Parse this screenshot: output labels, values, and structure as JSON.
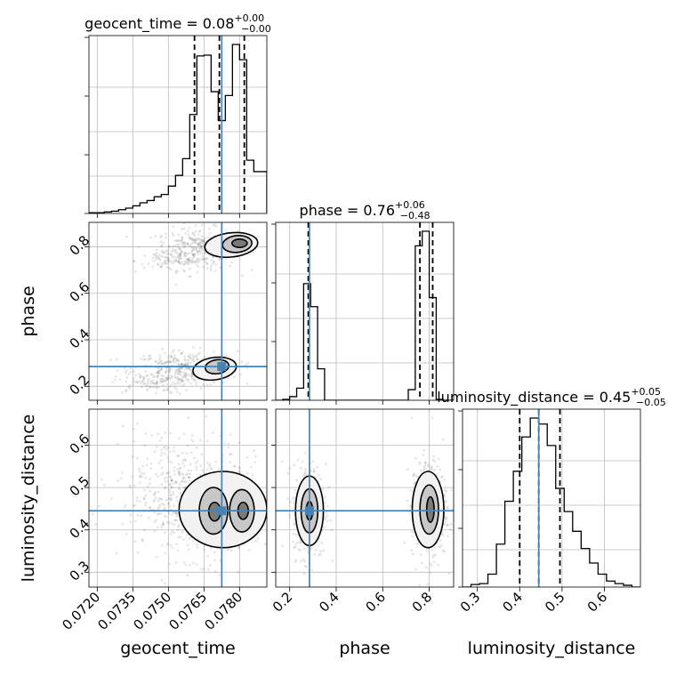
{
  "chart_data": {
    "type": "corner",
    "parameters": [
      "geocent_time",
      "phase",
      "luminosity_distance"
    ],
    "axis_labels": {
      "geocent_time": "geocent_time",
      "phase": "phase",
      "luminosity_distance": "luminosity_distance"
    },
    "ranges": {
      "geocent_time": [
        0.07165,
        0.07915
      ],
      "phase": [
        0.14,
        0.905
      ],
      "luminosity_distance": [
        0.265,
        0.685
      ]
    },
    "ticks": {
      "geocent_time": [
        "0.0720",
        "0.0735",
        "0.0750",
        "0.0765",
        "0.0780"
      ],
      "phase": [
        "0.2",
        "0.4",
        "0.6",
        "0.8"
      ],
      "luminosity_distance": [
        "0.3",
        "0.4",
        "0.5",
        "0.6"
      ]
    },
    "titles": {
      "geocent_time": {
        "name": "geocent_time",
        "median": "0.08",
        "plus": "+0.00",
        "minus": "−0.00"
      },
      "phase": {
        "name": "phase",
        "median": "0.76",
        "plus": "+0.06",
        "minus": "−0.48"
      },
      "luminosity_distance": {
        "name": "luminosity_distance",
        "median": "0.45",
        "plus": "+0.05",
        "minus": "−0.05"
      }
    },
    "truths": {
      "geocent_time": 0.07725,
      "phase": 0.285,
      "luminosity_distance": 0.445
    },
    "quantiles": {
      "geocent_time": [
        0.0761,
        0.07715,
        0.0782
      ],
      "phase": [
        0.28,
        0.76,
        0.815
      ],
      "luminosity_distance": [
        0.4,
        0.445,
        0.495
      ]
    },
    "histograms": {
      "geocent_time": {
        "edges": [
          0.07165,
          0.072,
          0.0723,
          0.0726,
          0.0729,
          0.0732,
          0.0735,
          0.0738,
          0.0741,
          0.0744,
          0.0747,
          0.075,
          0.0753,
          0.0756,
          0.0759,
          0.0762,
          0.0765,
          0.0768,
          0.0771,
          0.0774,
          0.0777,
          0.078,
          0.0783,
          0.0786,
          0.07915
        ],
        "counts": [
          1,
          1,
          2,
          3,
          5,
          7,
          10,
          14,
          17,
          22,
          25,
          36,
          50,
          72,
          130,
          207,
          208,
          160,
          122,
          155,
          222,
          202,
          70,
          55
        ]
      },
      "phase": {
        "edges": [
          0.14,
          0.17,
          0.2,
          0.23,
          0.26,
          0.29,
          0.32,
          0.35,
          0.38,
          0.41,
          0.44,
          0.47,
          0.5,
          0.53,
          0.56,
          0.59,
          0.62,
          0.65,
          0.68,
          0.71,
          0.74,
          0.77,
          0.8,
          0.83,
          0.86,
          0.905
        ],
        "counts": [
          0,
          3,
          12,
          40,
          385,
          309,
          104,
          0,
          0,
          0,
          0,
          0,
          0,
          0,
          0,
          0,
          0,
          0,
          0,
          35,
          510,
          558,
          339,
          3,
          0
        ]
      },
      "luminosity_distance": {
        "edges": [
          0.265,
          0.285,
          0.305,
          0.325,
          0.345,
          0.365,
          0.385,
          0.405,
          0.425,
          0.445,
          0.465,
          0.485,
          0.505,
          0.525,
          0.545,
          0.565,
          0.585,
          0.605,
          0.625,
          0.645,
          0.665,
          0.685
        ],
        "counts": [
          0,
          3,
          4,
          15,
          50,
          100,
          135,
          175,
          197,
          190,
          165,
          115,
          88,
          65,
          45,
          28,
          15,
          7,
          4,
          2,
          0
        ]
      }
    },
    "contours_2d": {
      "phase_vs_geocent_time": {
        "levels": [
          {
            "shade": "#f2f2f2",
            "regions": [
              {
                "cx": 0.07765,
                "cy": 0.808,
                "rx": 0.00112,
                "ry": 0.052,
                "rot": -6
              },
              {
                "cx": 0.07695,
                "cy": 0.276,
                "rx": 0.00092,
                "ry": 0.048,
                "rot": -8
              }
            ]
          },
          {
            "shade": "#c8c8c8",
            "regions": [
              {
                "cx": 0.0779,
                "cy": 0.812,
                "rx": 0.00062,
                "ry": 0.036,
                "rot": -6
              },
              {
                "cx": 0.07705,
                "cy": 0.284,
                "rx": 0.0005,
                "ry": 0.03,
                "rot": -8
              }
            ]
          },
          {
            "shade": "#7a7a7a",
            "regions": [
              {
                "cx": 0.078,
                "cy": 0.815,
                "rx": 0.00032,
                "ry": 0.018,
                "rot": 0
              }
            ]
          }
        ],
        "scatter_clusters": [
          {
            "cx": 0.0762,
            "cy": 0.79,
            "sx": 0.00085,
            "sy": 0.045,
            "n": 320
          },
          {
            "cx": 0.075,
            "cy": 0.74,
            "sx": 0.0007,
            "sy": 0.025,
            "n": 60
          },
          {
            "cx": 0.0757,
            "cy": 0.275,
            "sx": 0.0011,
            "sy": 0.038,
            "n": 340
          },
          {
            "cx": 0.0742,
            "cy": 0.22,
            "sx": 0.0008,
            "sy": 0.025,
            "n": 90
          }
        ]
      },
      "luminosity_distance_vs_geocent_time": {
        "levels": [
          {
            "shade": "#f2f2f2",
            "regions": [
              {
                "cx": 0.0773,
                "cy": 0.448,
                "rx": 0.00185,
                "ry": 0.09,
                "rot": 0
              }
            ]
          },
          {
            "shade": "#c8c8c8",
            "regions": [
              {
                "cx": 0.0769,
                "cy": 0.445,
                "rx": 0.0006,
                "ry": 0.055,
                "rot": 0
              },
              {
                "cx": 0.0781,
                "cy": 0.445,
                "rx": 0.00052,
                "ry": 0.05,
                "rot": 0
              }
            ]
          },
          {
            "shade": "#7a7a7a",
            "regions": [
              {
                "cx": 0.07695,
                "cy": 0.443,
                "rx": 0.00025,
                "ry": 0.022,
                "rot": 0
              },
              {
                "cx": 0.07815,
                "cy": 0.445,
                "rx": 0.00022,
                "ry": 0.02,
                "rot": 0
              }
            ]
          }
        ],
        "scatter_clusters": [
          {
            "cx": 0.0765,
            "cy": 0.45,
            "sx": 0.0013,
            "sy": 0.06,
            "n": 520
          },
          {
            "cx": 0.075,
            "cy": 0.52,
            "sx": 0.0012,
            "sy": 0.07,
            "n": 200
          }
        ]
      },
      "luminosity_distance_vs_phase": {
        "levels": [
          {
            "shade": "#f2f2f2",
            "regions": [
              {
                "cx": 0.285,
                "cy": 0.445,
                "rx": 0.06,
                "ry": 0.082,
                "rot": 0
              },
              {
                "cx": 0.795,
                "cy": 0.448,
                "rx": 0.068,
                "ry": 0.09,
                "rot": 0
              }
            ]
          },
          {
            "shade": "#c8c8c8",
            "regions": [
              {
                "cx": 0.285,
                "cy": 0.445,
                "rx": 0.036,
                "ry": 0.052,
                "rot": 0
              },
              {
                "cx": 0.8,
                "cy": 0.448,
                "rx": 0.04,
                "ry": 0.058,
                "rot": 0
              }
            ]
          },
          {
            "shade": "#7a7a7a",
            "regions": [
              {
                "cx": 0.285,
                "cy": 0.445,
                "rx": 0.014,
                "ry": 0.022,
                "rot": 0
              },
              {
                "cx": 0.805,
                "cy": 0.448,
                "rx": 0.016,
                "ry": 0.03,
                "rot": 0
              }
            ]
          }
        ],
        "scatter_clusters": [
          {
            "cx": 0.285,
            "cy": 0.445,
            "sx": 0.035,
            "sy": 0.055,
            "n": 380
          },
          {
            "cx": 0.8,
            "cy": 0.45,
            "sx": 0.038,
            "sy": 0.06,
            "n": 420
          }
        ]
      }
    },
    "grid": true
  }
}
